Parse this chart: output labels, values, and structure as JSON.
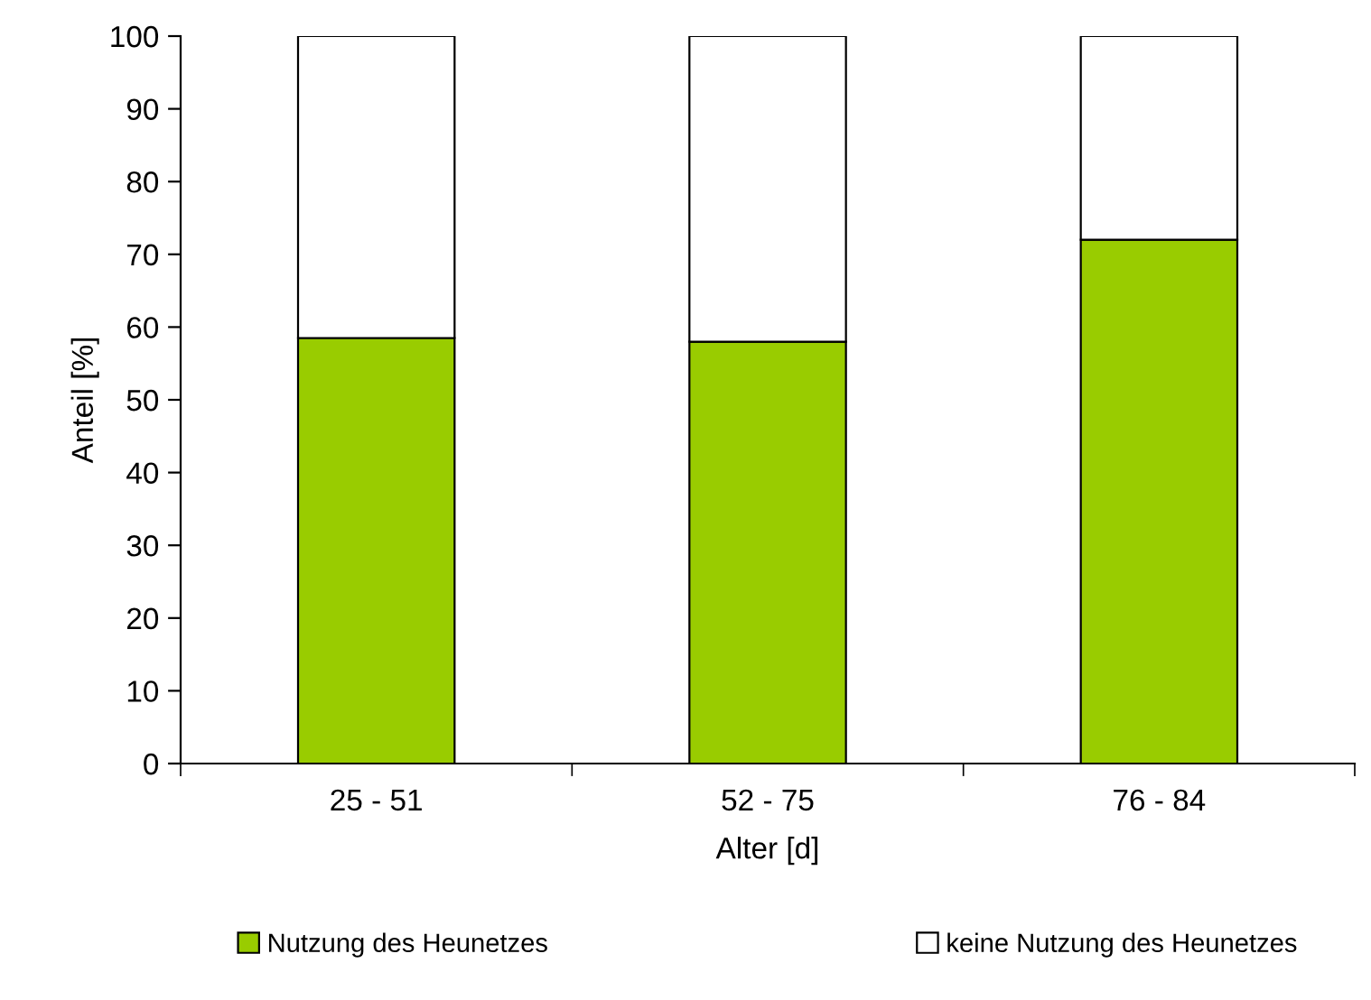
{
  "chart_data": {
    "type": "bar",
    "stacked": true,
    "xlabel": "Alter [d]",
    "ylabel": "Anteil [%]",
    "categories": [
      "25 - 51",
      "52 - 75",
      "76 - 84"
    ],
    "series": [
      {
        "name": "Nutzung des Heunetzes",
        "color": "#99cc00",
        "values": [
          58.5,
          58,
          72
        ]
      },
      {
        "name": "keine Nutzung des Heunetzes",
        "color": "#ffffff",
        "values": [
          41.5,
          42,
          28
        ]
      }
    ],
    "ylim": [
      0,
      100
    ],
    "yticks": [
      0,
      10,
      20,
      30,
      40,
      50,
      60,
      70,
      80,
      90,
      100
    ],
    "grid": false,
    "legend": "bottom"
  }
}
